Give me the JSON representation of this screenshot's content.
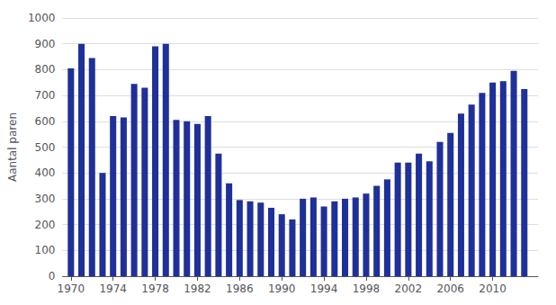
{
  "chart_data": {
    "type": "bar",
    "x": [
      1970,
      1971,
      1972,
      1973,
      1974,
      1975,
      1976,
      1977,
      1978,
      1979,
      1980,
      1981,
      1982,
      1983,
      1984,
      1985,
      1986,
      1987,
      1988,
      1989,
      1990,
      1991,
      1992,
      1993,
      1994,
      1995,
      1996,
      1997,
      1998,
      1999,
      2000,
      2001,
      2002,
      2003,
      2004,
      2005,
      2006,
      2007,
      2008,
      2009,
      2010,
      2011,
      2012,
      2013
    ],
    "values": [
      805,
      900,
      845,
      400,
      620,
      615,
      745,
      730,
      890,
      900,
      605,
      600,
      590,
      620,
      475,
      360,
      295,
      290,
      285,
      265,
      240,
      220,
      300,
      305,
      270,
      290,
      300,
      305,
      320,
      350,
      375,
      440,
      440,
      475,
      445,
      520,
      555,
      630,
      665,
      710,
      750,
      755,
      795,
      725
    ],
    "color": "#1f3099",
    "ylabel": "Aantal paren",
    "xlim": [
      1969.2,
      2014.3
    ],
    "xticks": [
      1970,
      1974,
      1978,
      1982,
      1986,
      1990,
      1994,
      1998,
      2002,
      2006,
      2010
    ],
    "ylim": [
      0,
      1000
    ],
    "yticks": [
      0,
      100,
      200,
      300,
      400,
      500,
      600,
      700,
      800,
      900,
      1000
    ],
    "grid": true
  }
}
